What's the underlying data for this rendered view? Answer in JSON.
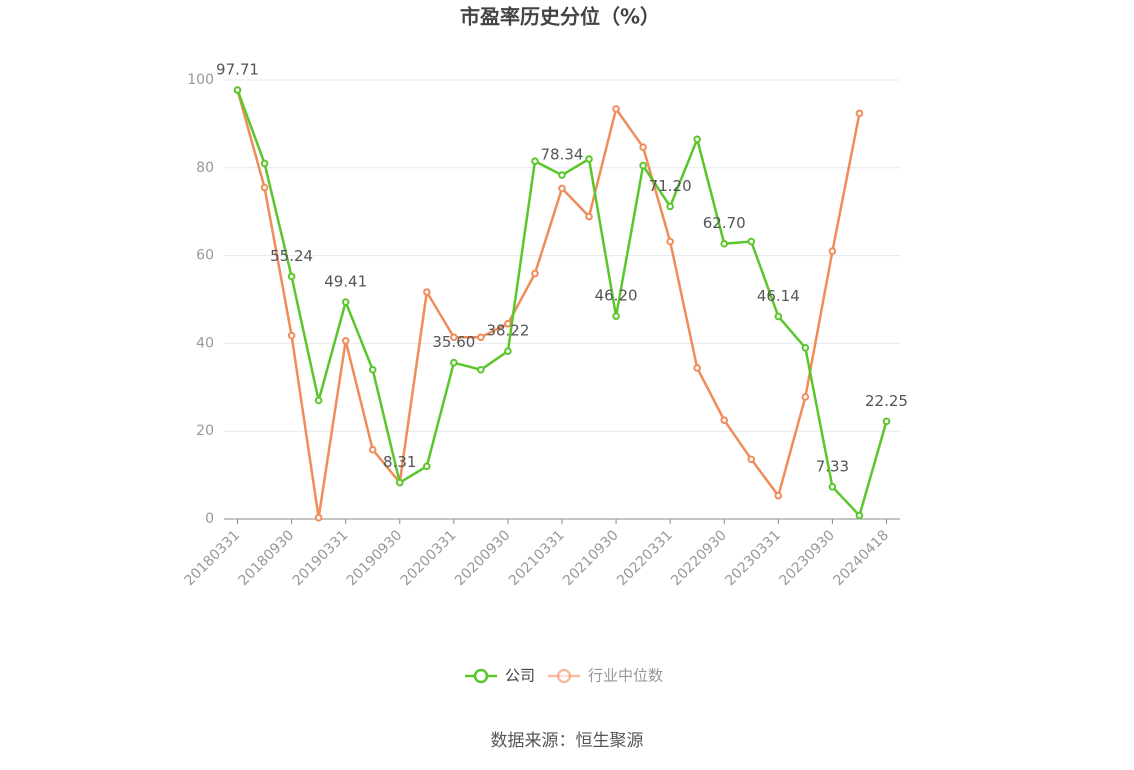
{
  "chart_data": {
    "type": "line",
    "title": "市盈率历史分位（%）",
    "source": "数据来源：恒生聚源",
    "categories": [
      "20180331",
      null,
      "20180930",
      null,
      "20190331",
      null,
      "20190930",
      null,
      "20200331",
      null,
      "20200930",
      null,
      "20210331",
      null,
      "20210930",
      null,
      "20220331",
      null,
      "20220930",
      null,
      "20230331",
      null,
      "20230930",
      null,
      "20240418"
    ],
    "series": [
      {
        "name": "公司",
        "color": "#5bc62c",
        "values": [
          97.71,
          81,
          55.24,
          27,
          49.41,
          34,
          8.31,
          12,
          35.6,
          34,
          38.22,
          81.5,
          78.34,
          82,
          46.2,
          80.5,
          71.2,
          86.5,
          62.7,
          63.2,
          46.14,
          39,
          7.33,
          0.8,
          22.25
        ],
        "value_labels": [
          "97.71",
          null,
          "55.24",
          null,
          "49.41",
          null,
          "8.31",
          null,
          "35.60",
          null,
          "38.22",
          null,
          "78.34",
          null,
          "46.20",
          null,
          "71.20",
          null,
          "62.70",
          null,
          "46.14",
          null,
          "7.33",
          null,
          "22.25"
        ]
      },
      {
        "name": "行业中位数",
        "color": "#f08c5a",
        "values": [
          97.7,
          75.5,
          41.8,
          0.3,
          40.6,
          15.8,
          8.3,
          51.7,
          41.4,
          41.4,
          44.5,
          55.9,
          75.3,
          68.9,
          93.4,
          84.7,
          63.2,
          34.4,
          22.5,
          13.6,
          5.3,
          27.8,
          61,
          92.4,
          null
        ]
      }
    ],
    "ylim": [
      0,
      100
    ],
    "yticks": [
      0,
      20,
      40,
      60,
      80,
      100
    ],
    "grid": true
  }
}
